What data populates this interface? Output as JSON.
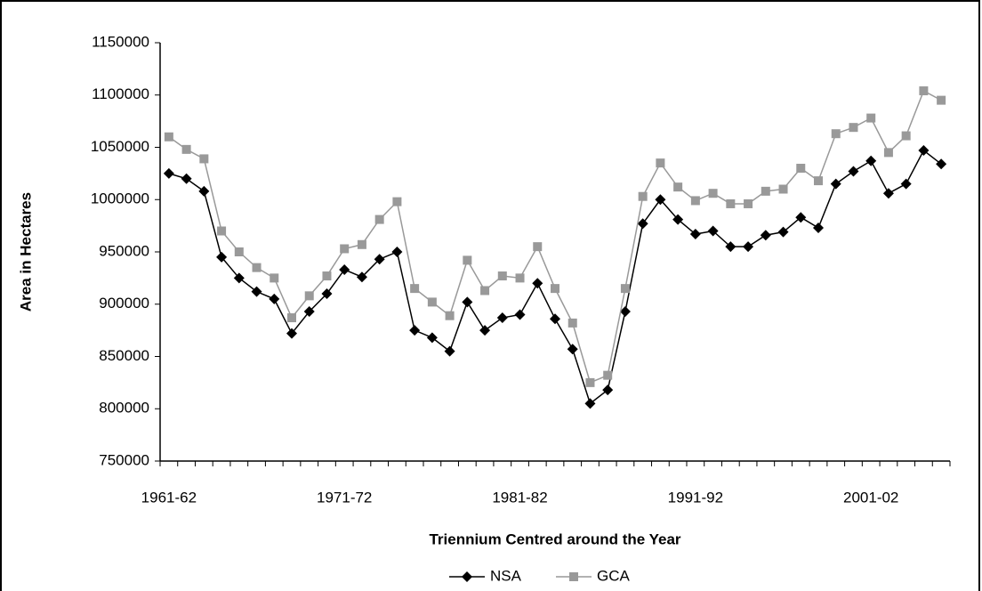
{
  "chart_data": {
    "type": "line",
    "x_label": "Triennium Centred around the Year",
    "y_label": "Area in Hectares",
    "categories": [
      "1961-62",
      null,
      null,
      null,
      null,
      null,
      null,
      null,
      null,
      null,
      "1971-72",
      null,
      null,
      null,
      null,
      null,
      null,
      null,
      null,
      null,
      "1981-82",
      null,
      null,
      null,
      null,
      null,
      null,
      null,
      null,
      null,
      "1991-92",
      null,
      null,
      null,
      null,
      null,
      null,
      null,
      null,
      null,
      "2001-02",
      null,
      null,
      null,
      null
    ],
    "series": [
      {
        "name": "NSA",
        "color": "#000000",
        "marker": "diamond",
        "values": [
          1025000,
          1020000,
          1008000,
          945000,
          925000,
          912000,
          905000,
          872000,
          893000,
          910000,
          933000,
          926000,
          943000,
          950000,
          875000,
          868000,
          855000,
          902000,
          875000,
          887000,
          890000,
          920000,
          886000,
          857000,
          805000,
          818000,
          893000,
          977000,
          1000000,
          981000,
          967000,
          970000,
          955000,
          955000,
          966000,
          969000,
          983000,
          973000,
          1015000,
          1027000,
          1037000,
          1006000,
          1015000,
          1047000,
          1034000
        ]
      },
      {
        "name": "GCA",
        "color": "#999999",
        "marker": "square",
        "values": [
          1060000,
          1048000,
          1039000,
          970000,
          950000,
          935000,
          925000,
          887000,
          908000,
          927000,
          953000,
          957000,
          981000,
          998000,
          915000,
          902000,
          889000,
          942000,
          913000,
          927000,
          925000,
          955000,
          915000,
          882000,
          825000,
          832000,
          915000,
          1003000,
          1035000,
          1012000,
          999000,
          1006000,
          996000,
          996000,
          1008000,
          1010000,
          1030000,
          1018000,
          1063000,
          1069000,
          1078000,
          1045000,
          1061000,
          1104000,
          1095000
        ]
      }
    ],
    "ylim": [
      750000,
      1150000
    ],
    "yticks": [
      750000,
      800000,
      850000,
      900000,
      950000,
      1000000,
      1050000,
      1100000,
      1150000
    ],
    "grid": false,
    "legend": "bottom"
  }
}
